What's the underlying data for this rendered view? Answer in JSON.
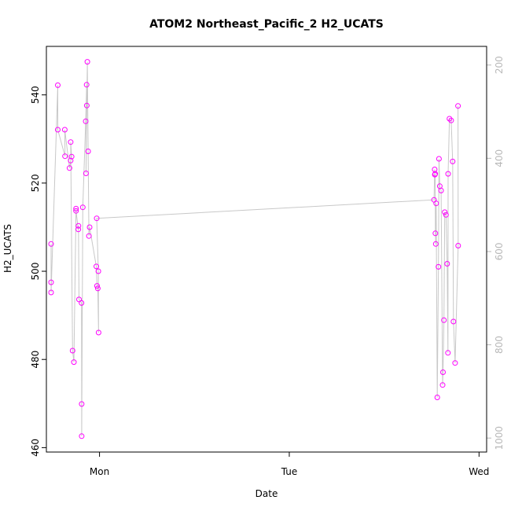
{
  "chart_data": {
    "type": "scatter",
    "title": "ATOM2 Northeast_Pacific_2 H2_UCATS",
    "xlabel": "Date",
    "ylabel": "H2_UCATS",
    "x_ticks": [
      {
        "label": "Mon",
        "value": 0
      },
      {
        "label": "Tue",
        "value": 1
      },
      {
        "label": "Wed",
        "value": 2
      }
    ],
    "xlim": [
      -0.28,
      2.04
    ],
    "ylim": [
      459,
      551
    ],
    "y_ticks": [
      460,
      480,
      500,
      520,
      540
    ],
    "y2_ticks": [
      200,
      400,
      600,
      800,
      1000
    ],
    "y2lim": [
      1030,
      160
    ],
    "grid": false,
    "colors": {
      "points": "#ff00ff",
      "line": "#c8c8c8",
      "right_axis": "#b8b8b8"
    },
    "series": [
      {
        "marker": "circle",
        "x": [
          -0.255,
          -0.255,
          -0.255,
          -0.22,
          -0.22,
          -0.182,
          -0.183,
          -0.158,
          -0.152,
          -0.147,
          -0.152,
          -0.142,
          -0.135,
          -0.124,
          -0.124,
          -0.112,
          -0.111,
          -0.108,
          -0.095,
          -0.094,
          -0.094,
          -0.088,
          -0.073,
          -0.068,
          -0.071,
          -0.067,
          -0.064,
          -0.06,
          -0.056,
          -0.052,
          -0.017,
          -0.013,
          -0.009,
          -0.005,
          -0.006,
          -0.015,
          1.763,
          1.766,
          1.767,
          1.769,
          1.77,
          1.772,
          1.774,
          1.78,
          1.786,
          1.789,
          1.793,
          1.8,
          1.808,
          1.81,
          1.815,
          1.819,
          1.826,
          1.832,
          1.836,
          1.837,
          1.844,
          1.853,
          1.861,
          1.865,
          1.874,
          1.89,
          1.889
        ],
        "y": [
          506.2,
          497.5,
          495.2,
          542.2,
          532.1,
          526.1,
          532.1,
          523.4,
          525.1,
          526.0,
          529.3,
          482.0,
          479.4,
          514.2,
          513.7,
          509.5,
          510.3,
          493.6,
          492.8,
          469.9,
          462.6,
          514.5,
          534.0,
          542.3,
          522.2,
          537.6,
          547.5,
          527.2,
          508.0,
          510.0,
          501.1,
          496.7,
          496.1,
          486.1,
          500.0,
          512.0,
          516.2,
          523.1,
          521.9,
          522.1,
          508.6,
          506.2,
          515.4,
          471.4,
          501.0,
          525.5,
          519.3,
          518.3,
          474.2,
          477.1,
          488.9,
          513.4,
          512.8,
          501.7,
          481.5,
          522.1,
          534.6,
          534.2,
          524.9,
          488.6,
          479.2,
          505.8,
          537.5
        ],
        "note": "values estimated from plot"
      }
    ]
  }
}
